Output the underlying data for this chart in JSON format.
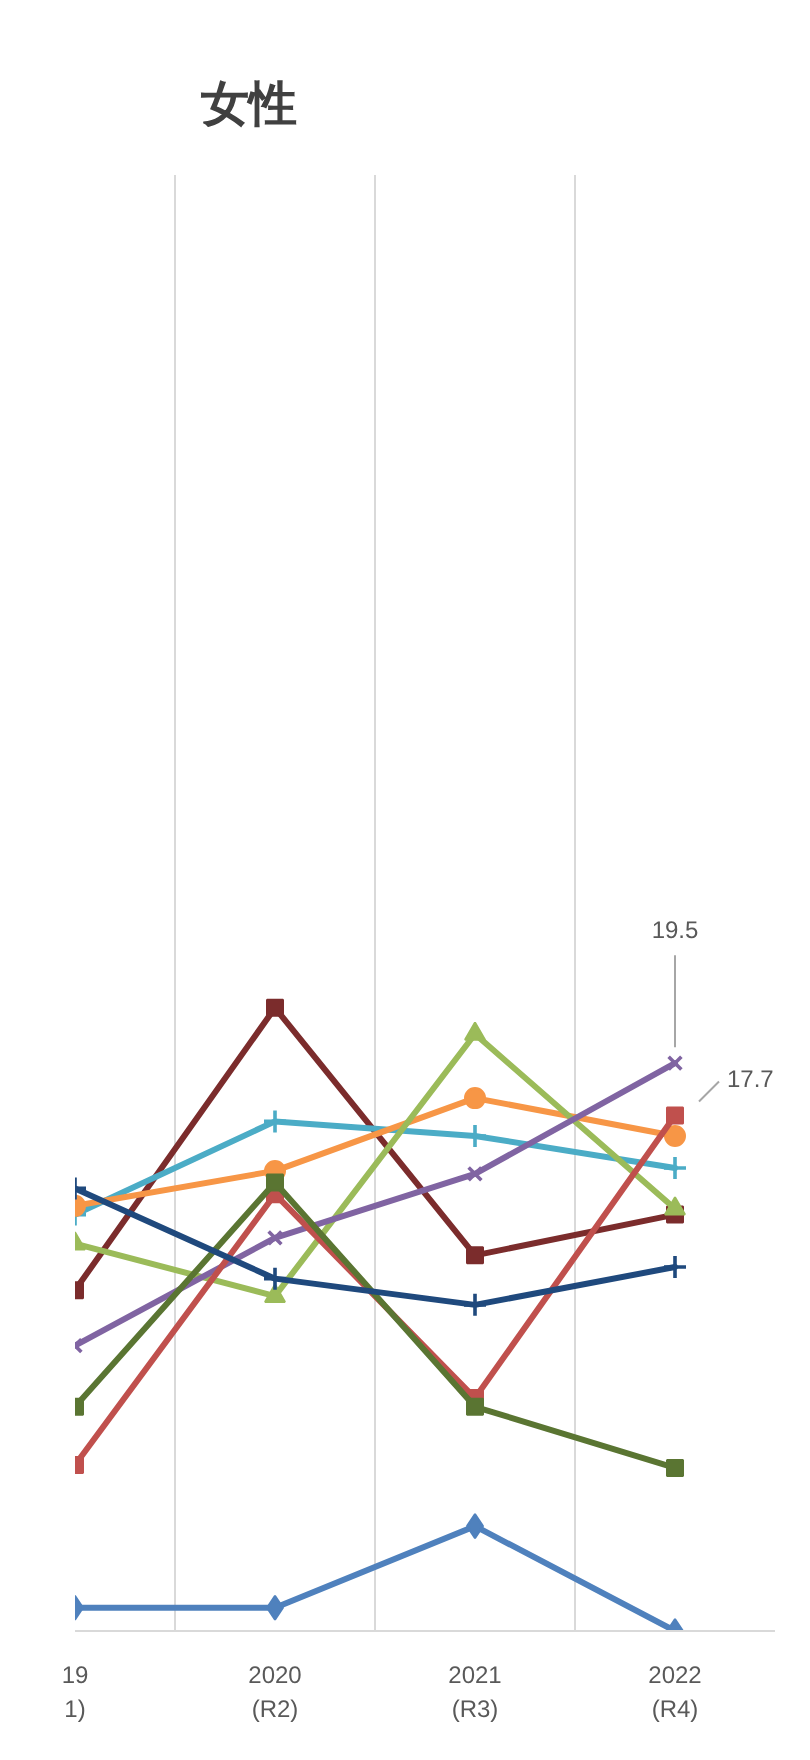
{
  "chart_data": {
    "type": "line",
    "title": "女性",
    "categories": [
      "19\n1)",
      "2020\n(R2)",
      "2021\n(R3)",
      "2022\n(R4)"
    ],
    "ylim": [
      0,
      50
    ],
    "tick_labels": "x",
    "grid": "x",
    "line_style": "solid",
    "series": [
      {
        "color": "#4f81bd",
        "marker": "diamond",
        "values": [
          0.8,
          0.8,
          3.6,
          0.0
        ]
      },
      {
        "color": "#7b2c2c",
        "marker": "square",
        "values": [
          11.7,
          21.4,
          12.9,
          14.3
        ]
      },
      {
        "color": "#4bacc6",
        "marker": "cross",
        "values": [
          14.3,
          17.5,
          17.0,
          15.9
        ]
      },
      {
        "color": "#f79646",
        "marker": "circle",
        "values": [
          14.6,
          15.8,
          18.3,
          17.0
        ]
      },
      {
        "color": "#9bbb59",
        "marker": "triangle",
        "values": [
          13.3,
          11.5,
          20.5,
          14.5
        ]
      },
      {
        "color": "#8064a2",
        "marker": "x",
        "values": [
          9.8,
          13.5,
          15.7,
          19.5
        ],
        "value_labels": [
          null,
          null,
          null,
          "19.5"
        ]
      },
      {
        "color": "#c0504d",
        "marker": "square",
        "values": [
          5.7,
          15.0,
          8.0,
          17.7
        ],
        "value_labels": [
          null,
          null,
          null,
          "17.7"
        ]
      },
      {
        "color": "#5a7532",
        "marker": "square",
        "values": [
          7.7,
          15.4,
          7.7,
          5.6
        ]
      },
      {
        "color": "#1f497d",
        "marker": "cross",
        "values": [
          15.2,
          12.1,
          11.2,
          12.5
        ]
      }
    ]
  }
}
